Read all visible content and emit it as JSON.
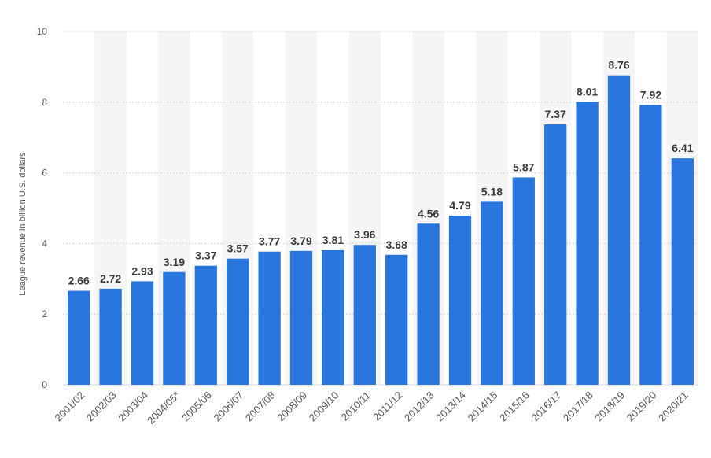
{
  "chart_data": {
    "type": "bar",
    "title": "",
    "xlabel": "",
    "ylabel": "League revenue in billion U.S. dollars",
    "ylim": [
      0,
      10
    ],
    "yticks": [
      0,
      2,
      4,
      6,
      8,
      10
    ],
    "grid": true,
    "categories": [
      "2001/02",
      "2002/03",
      "2003/04",
      "2004/05*",
      "2005/06",
      "2006/07",
      "2007/08",
      "2008/09",
      "2009/10",
      "2010/11",
      "2011/12",
      "2012/13",
      "2013/14",
      "2014/15",
      "2015/16",
      "2016/17",
      "2017/18",
      "2018/19",
      "2019/20",
      "2020/21"
    ],
    "values": [
      2.66,
      2.72,
      2.93,
      3.19,
      3.37,
      3.57,
      3.77,
      3.79,
      3.81,
      3.96,
      3.68,
      4.56,
      4.79,
      5.18,
      5.87,
      7.37,
      8.01,
      8.76,
      7.92,
      6.41
    ],
    "bar_color": "#2876dd"
  }
}
